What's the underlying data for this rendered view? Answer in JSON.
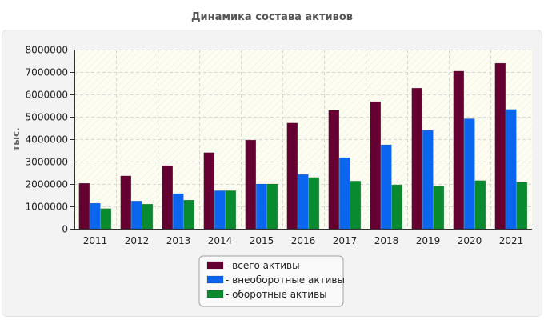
{
  "chart_data": {
    "type": "bar",
    "title": "Динамика состава активов",
    "ylabel": "тыс.",
    "xlabel": "",
    "ylim": [
      0,
      8000000
    ],
    "yticks": [
      0,
      1000000,
      2000000,
      3000000,
      4000000,
      5000000,
      6000000,
      7000000,
      8000000
    ],
    "categories": [
      "2011",
      "2012",
      "2013",
      "2014",
      "2015",
      "2016",
      "2017",
      "2018",
      "2019",
      "2020",
      "2021"
    ],
    "series": [
      {
        "name": "- всего активы",
        "color": "#660033",
        "values": [
          2030000,
          2360000,
          2820000,
          3400000,
          3960000,
          4720000,
          5290000,
          5680000,
          6280000,
          7040000,
          7390000
        ]
      },
      {
        "name": "- внеоборотные активы",
        "color": "#0a66ee",
        "values": [
          1140000,
          1240000,
          1570000,
          1700000,
          2000000,
          2420000,
          3180000,
          3750000,
          4390000,
          4910000,
          5330000
        ]
      },
      {
        "name": "- оборотные активы",
        "color": "#0a8a2e",
        "values": [
          900000,
          1100000,
          1280000,
          1700000,
          2000000,
          2290000,
          2130000,
          1960000,
          1920000,
          2150000,
          2070000
        ]
      }
    ],
    "grid": true,
    "legend_position": "bottom-center"
  }
}
